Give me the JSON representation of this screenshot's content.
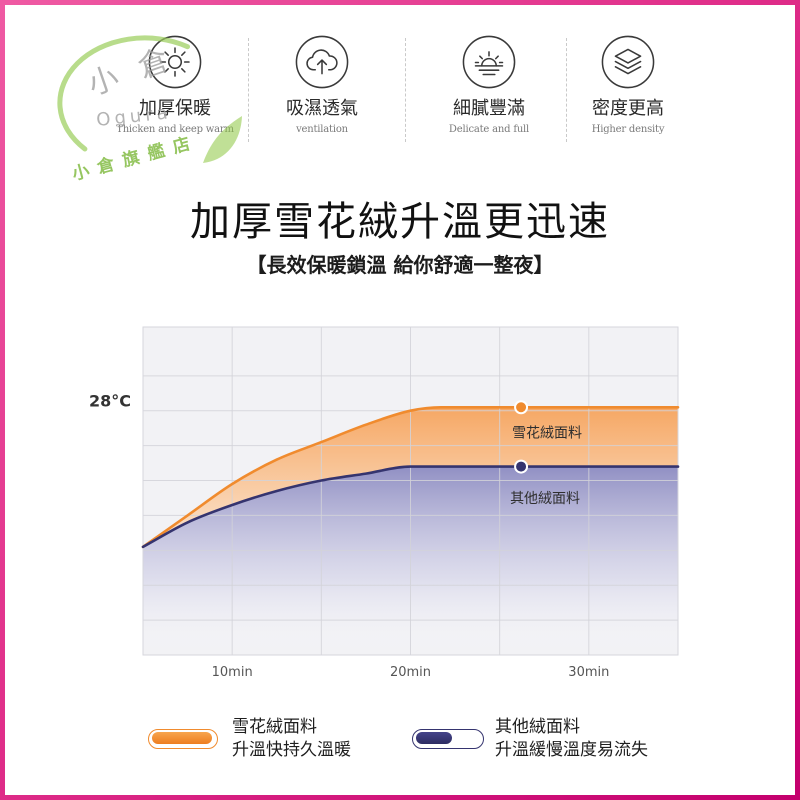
{
  "watermark": {
    "mark": "小倉",
    "romanized": "Ogura",
    "shop": "小倉旗艦店",
    "color": "#8dc63f"
  },
  "features": [
    {
      "icon": "sun-icon",
      "label": "加厚保暖",
      "caption": "Thicken and keep warm"
    },
    {
      "icon": "cloud-upload-icon",
      "label": "吸濕透氣",
      "caption": "ventilation"
    },
    {
      "icon": "sunrise-icon",
      "label": "細膩豐滿",
      "caption": "Delicate and full"
    },
    {
      "icon": "layers-icon",
      "label": "密度更高",
      "caption": "Higher density"
    }
  ],
  "headline": {
    "title": "加厚雪花絨升溫更迅速",
    "subtitle": "【長效保暖鎖溫 給你舒適一整夜】"
  },
  "colors": {
    "frame": "#d6037b",
    "accent_orange": "#f08b2e",
    "accent_navy": "#35346f",
    "plot_background": "#f2f2f5"
  },
  "chart_data": {
    "type": "area",
    "x_ticks": [
      {
        "value": 10,
        "label": "10min"
      },
      {
        "value": 20,
        "label": "20min"
      },
      {
        "value": 30,
        "label": "30min"
      }
    ],
    "y_ticks": [
      {
        "value": 28,
        "label": "28°C"
      }
    ],
    "xlim": [
      5,
      35
    ],
    "ylim": [
      21,
      30.4
    ],
    "grid": true,
    "series": [
      {
        "name": "雪花絨面料",
        "color": "#f08b2e",
        "points": [
          [
            5,
            24.1
          ],
          [
            7.5,
            25.0
          ],
          [
            10,
            25.9
          ],
          [
            12.5,
            26.6
          ],
          [
            15,
            27.1
          ],
          [
            17.5,
            27.6
          ],
          [
            20,
            28.0
          ],
          [
            21.7,
            28.1
          ],
          [
            35,
            28.1
          ]
        ]
      },
      {
        "name": "其他絨面料",
        "color": "#35346f",
        "points": [
          [
            5,
            24.1
          ],
          [
            7.5,
            24.8
          ],
          [
            10,
            25.3
          ],
          [
            12.5,
            25.7
          ],
          [
            15,
            26.0
          ],
          [
            17.5,
            26.2
          ],
          [
            20,
            26.4
          ],
          [
            35,
            26.4
          ]
        ]
      }
    ],
    "legend": {
      "placement": "bottom",
      "items": [
        {
          "name": "雪花絨面料",
          "description": "升溫快持久溫暖"
        },
        {
          "name": "其他絨面料",
          "description": "升溫緩慢溫度易流失"
        }
      ]
    }
  }
}
